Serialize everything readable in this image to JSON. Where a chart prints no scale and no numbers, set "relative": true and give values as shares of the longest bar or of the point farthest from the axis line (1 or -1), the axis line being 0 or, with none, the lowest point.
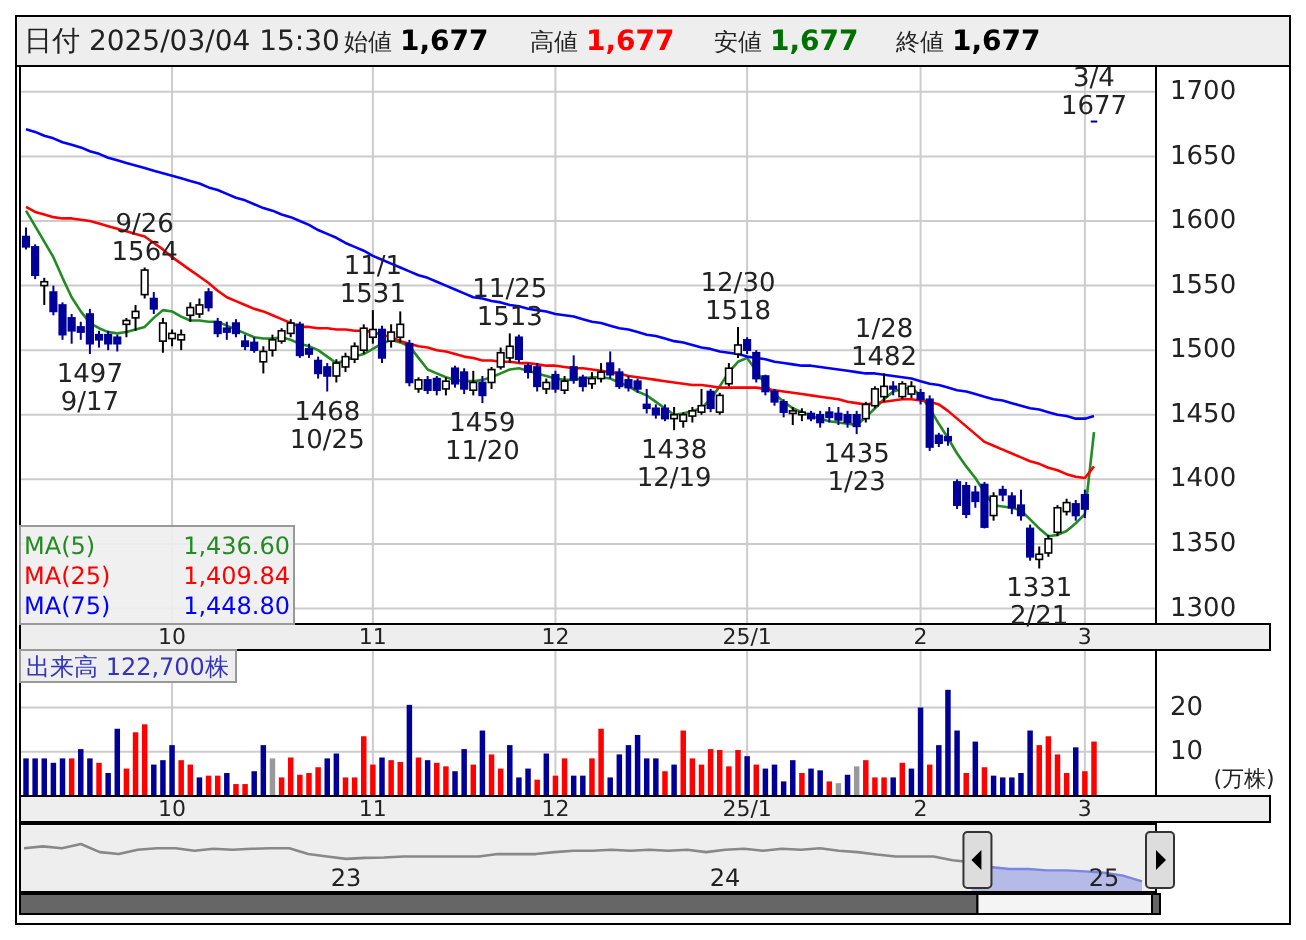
{
  "chart_data": [
    {
      "type": "candlestick",
      "title": "日付 2025/03/04 15:30",
      "annotations": [
        "始値 1,677",
        "高値 1,677",
        "安値 1,677",
        "終値 1,677",
        {
          "text": "9/26 1564",
          "y": 1564
        },
        {
          "text": "1497 9/17",
          "y": 1497
        },
        {
          "text": "1468 10/25",
          "y": 1468
        },
        {
          "text": "11/1 1531",
          "y": 1531
        },
        {
          "text": "1459 11/20",
          "y": 1459
        },
        {
          "text": "11/25 1513",
          "y": 1513
        },
        {
          "text": "1438 12/19",
          "y": 1438
        },
        {
          "text": "12/30 1518",
          "y": 1518
        },
        {
          "text": "1435 1/23",
          "y": 1435
        },
        {
          "text": "1/28 1482",
          "y": 1482
        },
        {
          "text": "1331 2/21",
          "y": 1331
        },
        {
          "text": "3/4 1677",
          "y": 1677
        }
      ],
      "categories": [
        null,
        null,
        null,
        null,
        null,
        null,
        null,
        null,
        null,
        null,
        null,
        null,
        null,
        null,
        null,
        null,
        "10",
        null,
        null,
        null,
        null,
        null,
        null,
        null,
        null,
        null,
        null,
        null,
        null,
        null,
        null,
        null,
        null,
        null,
        null,
        null,
        null,
        null,
        "11",
        null,
        null,
        null,
        null,
        null,
        null,
        null,
        null,
        null,
        null,
        null,
        null,
        null,
        null,
        null,
        null,
        null,
        null,
        null,
        "12",
        null,
        null,
        null,
        null,
        null,
        null,
        null,
        null,
        null,
        null,
        null,
        null,
        null,
        null,
        null,
        null,
        null,
        null,
        null,
        null,
        "25/1",
        null,
        null,
        null,
        null,
        null,
        null,
        null,
        null,
        null,
        null,
        null,
        null,
        null,
        null,
        null,
        null,
        null,
        null,
        "2",
        null,
        null,
        null,
        null,
        null,
        null,
        null,
        null,
        null,
        null,
        null,
        null,
        null,
        null,
        null,
        null,
        null,
        "3",
        null
      ],
      "ohlc": [
        [
          1588,
          1595,
          1578,
          1580
        ],
        [
          1580,
          1582,
          1555,
          1558
        ],
        [
          1550,
          1556,
          1535,
          1553
        ],
        [
          1545,
          1550,
          1527,
          1530
        ],
        [
          1535,
          1537,
          1508,
          1512
        ],
        [
          1525,
          1528,
          1505,
          1515
        ],
        [
          1518,
          1522,
          1508,
          1514
        ],
        [
          1528,
          1532,
          1497,
          1505
        ],
        [
          1512,
          1515,
          1502,
          1508
        ],
        [
          1512,
          1515,
          1500,
          1505
        ],
        [
          1510,
          1512,
          1499,
          1505
        ],
        [
          1520,
          1525,
          1510,
          1523
        ],
        [
          1525,
          1535,
          1515,
          1530
        ],
        [
          1543,
          1564,
          1540,
          1562
        ],
        [
          1540,
          1545,
          1528,
          1532
        ],
        [
          1507,
          1525,
          1498,
          1521
        ],
        [
          1509,
          1516,
          1503,
          1513
        ],
        [
          1508,
          1516,
          1500,
          1512
        ],
        [
          1527,
          1537,
          1522,
          1533
        ],
        [
          1528,
          1540,
          1525,
          1535
        ],
        [
          1545,
          1548,
          1530,
          1533
        ],
        [
          1522,
          1525,
          1510,
          1513
        ],
        [
          1517,
          1522,
          1508,
          1514
        ],
        [
          1521,
          1524,
          1510,
          1513
        ],
        [
          1507,
          1512,
          1500,
          1503
        ],
        [
          1506,
          1510,
          1498,
          1500
        ],
        [
          1491,
          1503,
          1482,
          1499
        ],
        [
          1500,
          1512,
          1495,
          1508
        ],
        [
          1507,
          1517,
          1505,
          1515
        ],
        [
          1513,
          1524,
          1510,
          1521
        ],
        [
          1520,
          1522,
          1494,
          1496
        ],
        [
          1501,
          1505,
          1494,
          1497
        ],
        [
          1492,
          1495,
          1478,
          1482
        ],
        [
          1487,
          1490,
          1468,
          1480
        ],
        [
          1480,
          1493,
          1475,
          1490
        ],
        [
          1487,
          1498,
          1483,
          1495
        ],
        [
          1493,
          1506,
          1490,
          1503
        ],
        [
          1500,
          1520,
          1497,
          1517
        ],
        [
          1510,
          1531,
          1505,
          1516
        ],
        [
          1516,
          1519,
          1490,
          1494
        ],
        [
          1507,
          1520,
          1502,
          1514
        ],
        [
          1510,
          1530,
          1506,
          1520
        ],
        [
          1505,
          1508,
          1472,
          1475
        ],
        [
          1470,
          1479,
          1467,
          1477
        ],
        [
          1477,
          1480,
          1466,
          1469
        ],
        [
          1478,
          1480,
          1465,
          1469
        ],
        [
          1470,
          1479,
          1465,
          1476
        ],
        [
          1486,
          1488,
          1471,
          1474
        ],
        [
          1483,
          1486,
          1466,
          1470
        ],
        [
          1469,
          1484,
          1465,
          1475
        ],
        [
          1475,
          1480,
          1459,
          1465
        ],
        [
          1475,
          1487,
          1470,
          1485
        ],
        [
          1487,
          1502,
          1485,
          1498
        ],
        [
          1494,
          1513,
          1490,
          1503
        ],
        [
          1510,
          1512,
          1490,
          1493
        ],
        [
          1488,
          1490,
          1478,
          1483
        ],
        [
          1487,
          1490,
          1468,
          1472
        ],
        [
          1470,
          1478,
          1466,
          1475
        ],
        [
          1481,
          1484,
          1467,
          1470
        ],
        [
          1469,
          1480,
          1466,
          1476
        ],
        [
          1487,
          1496,
          1474,
          1477
        ],
        [
          1479,
          1481,
          1468,
          1472
        ],
        [
          1474,
          1483,
          1470,
          1478
        ],
        [
          1478,
          1490,
          1475,
          1483
        ],
        [
          1490,
          1499,
          1478,
          1481
        ],
        [
          1483,
          1486,
          1470,
          1472
        ],
        [
          1477,
          1480,
          1468,
          1471
        ],
        [
          1476,
          1478,
          1467,
          1470
        ],
        [
          1458,
          1470,
          1451,
          1455
        ],
        [
          1455,
          1458,
          1447,
          1450
        ],
        [
          1455,
          1458,
          1445,
          1447
        ],
        [
          1447,
          1456,
          1438,
          1450
        ],
        [
          1445,
          1452,
          1440,
          1450
        ],
        [
          1449,
          1456,
          1444,
          1453
        ],
        [
          1452,
          1470,
          1450,
          1457
        ],
        [
          1468,
          1470,
          1452,
          1455
        ],
        [
          1452,
          1467,
          1450,
          1465
        ],
        [
          1474,
          1490,
          1472,
          1486
        ],
        [
          1497,
          1518,
          1494,
          1504
        ],
        [
          1508,
          1510,
          1497,
          1500
        ],
        [
          1498,
          1500,
          1475,
          1478
        ],
        [
          1480,
          1481,
          1465,
          1468
        ],
        [
          1468,
          1470,
          1457,
          1460
        ],
        [
          1460,
          1462,
          1448,
          1452
        ],
        [
          1451,
          1456,
          1442,
          1453
        ],
        [
          1450,
          1455,
          1445,
          1452
        ],
        [
          1451,
          1453,
          1445,
          1447
        ],
        [
          1450,
          1453,
          1440,
          1444
        ],
        [
          1452,
          1456,
          1444,
          1448
        ],
        [
          1451,
          1456,
          1442,
          1446
        ],
        [
          1450,
          1453,
          1440,
          1444
        ],
        [
          1450,
          1453,
          1435,
          1441
        ],
        [
          1447,
          1460,
          1444,
          1458
        ],
        [
          1457,
          1472,
          1455,
          1470
        ],
        [
          1464,
          1482,
          1460,
          1472
        ],
        [
          1472,
          1476,
          1465,
          1470
        ],
        [
          1464,
          1476,
          1462,
          1474
        ],
        [
          1466,
          1476,
          1463,
          1472
        ],
        [
          1467,
          1470,
          1458,
          1462
        ],
        [
          1462,
          1465,
          1422,
          1425
        ],
        [
          1434,
          1436,
          1425,
          1428
        ],
        [
          1433,
          1440,
          1426,
          1430
        ],
        [
          1398,
          1400,
          1377,
          1380
        ],
        [
          1395,
          1398,
          1370,
          1373
        ],
        [
          1390,
          1395,
          1378,
          1383
        ],
        [
          1396,
          1398,
          1362,
          1363
        ],
        [
          1372,
          1390,
          1368,
          1387
        ],
        [
          1392,
          1395,
          1383,
          1388
        ],
        [
          1387,
          1390,
          1373,
          1378
        ],
        [
          1380,
          1392,
          1368,
          1372
        ],
        [
          1362,
          1365,
          1337,
          1340
        ],
        [
          1338,
          1348,
          1331,
          1342
        ],
        [
          1343,
          1357,
          1340,
          1354
        ],
        [
          1359,
          1380,
          1356,
          1378
        ],
        [
          1375,
          1385,
          1372,
          1382
        ],
        [
          1381,
          1384,
          1368,
          1372
        ],
        [
          1388,
          1392,
          1370,
          1377
        ],
        [
          1677,
          1677,
          1677,
          1677
        ]
      ],
      "colors": [
        "#000099",
        "#000099",
        "#ffffff",
        "#000099",
        "#000099",
        "#000099",
        "#000099",
        "#000099",
        "#000099",
        "#000099",
        "#000099",
        "#ffffff",
        "#ffffff",
        "#ffffff",
        "#000099",
        "#ffffff",
        "#ffffff",
        "#ffffff",
        "#ffffff",
        "#ffffff",
        "#000099",
        "#000099",
        "#000099",
        "#000099",
        "#000099",
        "#000099",
        "#ffffff",
        "#ffffff",
        "#ffffff",
        "#ffffff",
        "#000099",
        "#000099",
        "#000099",
        "#000099",
        "#ffffff",
        "#ffffff",
        "#ffffff",
        "#ffffff",
        "#ffffff",
        "#000099",
        "#ffffff",
        "#ffffff",
        "#000099",
        "#ffffff",
        "#000099",
        "#000099",
        "#ffffff",
        "#000099",
        "#000099",
        "#ffffff",
        "#000099",
        "#ffffff",
        "#ffffff",
        "#ffffff",
        "#000099",
        "#000099",
        "#000099",
        "#ffffff",
        "#000099",
        "#ffffff",
        "#000099",
        "#000099",
        "#ffffff",
        "#ffffff",
        "#000099",
        "#000099",
        "#000099",
        "#000099",
        "#000099",
        "#000099",
        "#000099",
        "#ffffff",
        "#ffffff",
        "#ffffff",
        "#ffffff",
        "#000099",
        "#ffffff",
        "#ffffff",
        "#ffffff",
        "#000099",
        "#000099",
        "#000099",
        "#000099",
        "#000099",
        "#ffffff",
        "#ffffff",
        "#000099",
        "#000099",
        "#000099",
        "#000099",
        "#000099",
        "#000099",
        "#ffffff",
        "#ffffff",
        "#ffffff",
        "#000099",
        "#ffffff",
        "#ffffff",
        "#000099",
        "#000099",
        "#000099",
        "#000099",
        "#000099",
        "#000099",
        "#000099",
        "#000099",
        "#ffffff",
        "#000099",
        "#000099",
        "#000099",
        "#000099",
        "#ffffff",
        "#ffffff",
        "#ffffff",
        "#ffffff",
        "#000099",
        "#000099",
        "#000099"
      ],
      "series": [
        {
          "type": "line",
          "name": "MA(5) 1,436.60",
          "color": "#228b22",
          "values": [
            1608,
            1596,
            1584,
            1572,
            1556,
            1541,
            1530,
            1521,
            1517,
            1514,
            1513,
            1514,
            1516,
            1518,
            1525,
            1531,
            1530,
            1526,
            1523,
            1523,
            1522,
            1522,
            1519,
            1516,
            1513,
            1510,
            1509,
            1509,
            1510,
            1508,
            1505,
            1503,
            1500,
            1495,
            1490,
            1492,
            1495,
            1497,
            1501,
            1505,
            1508,
            1506,
            1503,
            1494,
            1485,
            1482,
            1479,
            1477,
            1476,
            1476,
            1477,
            1479,
            1482,
            1485,
            1486,
            1484,
            1482,
            1480,
            1478,
            1477,
            1477,
            1478,
            1479,
            1479,
            1478,
            1475,
            1472,
            1468,
            1465,
            1460,
            1455,
            1450,
            1451,
            1453,
            1455,
            1462,
            1472,
            1483,
            1491,
            1494,
            1484,
            1473,
            1466,
            1460,
            1455,
            1452,
            1449,
            1447,
            1445,
            1444,
            1443,
            1442,
            1448,
            1455,
            1462,
            1468,
            1470,
            1471,
            1465,
            1455,
            1443,
            1432,
            1420,
            1410,
            1401,
            1390,
            1380,
            1379,
            1378,
            1376,
            1369,
            1362,
            1356,
            1357,
            1360,
            1366,
            1373,
            1436.6
          ]
        },
        {
          "type": "line",
          "name": "MA(25) 1,409.84",
          "color": "#ff0000",
          "values": [
            1611,
            1607,
            1605,
            1603,
            1602,
            1602,
            1601,
            1600,
            1598,
            1596,
            1594,
            1592,
            1590,
            1588,
            1583,
            1578,
            1572,
            1567,
            1562,
            1557,
            1552,
            1546,
            1541,
            1538,
            1535,
            1532,
            1530,
            1527,
            1524,
            1521,
            1518,
            1518,
            1517,
            1517,
            1516,
            1516,
            1515,
            1515,
            1514,
            1512,
            1510,
            1507,
            1505,
            1503,
            1502,
            1500,
            1499,
            1497,
            1495,
            1494,
            1492,
            1492,
            1491,
            1491,
            1490,
            1490,
            1489,
            1488,
            1488,
            1487,
            1486,
            1486,
            1485,
            1484,
            1483,
            1482,
            1480,
            1479,
            1478,
            1477,
            1476,
            1475,
            1474,
            1473,
            1473,
            1472,
            1471,
            1471,
            1471,
            1471,
            1471,
            1470,
            1469,
            1468,
            1467,
            1466,
            1465,
            1464,
            1463,
            1462,
            1460,
            1459,
            1458,
            1459,
            1460,
            1461,
            1462,
            1462,
            1461,
            1460,
            1458,
            1453,
            1447,
            1441,
            1435,
            1429,
            1426,
            1423,
            1420,
            1417,
            1414,
            1412,
            1409,
            1407,
            1404,
            1402,
            1401,
            1410
          ]
        },
        {
          "type": "line",
          "name": "MA(75) 1,448.80",
          "color": "#0000ff",
          "values": [
            1671,
            1669,
            1666,
            1664,
            1661,
            1659,
            1657,
            1654,
            1652,
            1649,
            1647,
            1645,
            1643,
            1641,
            1639,
            1637,
            1635,
            1633,
            1631,
            1629,
            1626,
            1624,
            1621,
            1618,
            1616,
            1613,
            1610,
            1608,
            1605,
            1603,
            1600,
            1597,
            1593,
            1590,
            1587,
            1583,
            1580,
            1577,
            1573,
            1570,
            1567,
            1564,
            1561,
            1558,
            1556,
            1553,
            1550,
            1547,
            1544,
            1541,
            1540,
            1538,
            1537,
            1535,
            1534,
            1532,
            1531,
            1530,
            1528,
            1527,
            1526,
            1524,
            1522,
            1521,
            1519,
            1517,
            1516,
            1514,
            1512,
            1511,
            1509,
            1507,
            1506,
            1504,
            1502,
            1501,
            1499,
            1498,
            1497,
            1495,
            1494,
            1493,
            1491,
            1490,
            1489,
            1488,
            1488,
            1487,
            1486,
            1485,
            1484,
            1483,
            1482,
            1482,
            1481,
            1480,
            1479,
            1478,
            1476,
            1474,
            1473,
            1471,
            1469,
            1468,
            1466,
            1464,
            1462,
            1461,
            1459,
            1457,
            1455,
            1454,
            1452,
            1450,
            1449,
            1447,
            1447,
            1449
          ]
        }
      ],
      "ylim": [
        1288,
        1720
      ],
      "yticks": [
        1300,
        1350,
        1400,
        1450,
        1500,
        1550,
        1600,
        1650,
        1700
      ],
      "grid": true
    },
    {
      "type": "bar",
      "title": "出来高 122,700株",
      "ylabel": "(万株)",
      "categories": [
        null,
        null,
        null,
        null,
        null,
        null,
        null,
        null,
        null,
        null,
        null,
        null,
        null,
        null,
        null,
        null,
        "10",
        null,
        null,
        null,
        null,
        null,
        null,
        null,
        null,
        null,
        null,
        null,
        null,
        null,
        null,
        null,
        null,
        null,
        null,
        null,
        null,
        null,
        "11",
        null,
        null,
        null,
        null,
        null,
        null,
        null,
        null,
        null,
        null,
        null,
        null,
        null,
        null,
        null,
        null,
        null,
        null,
        null,
        "12",
        null,
        null,
        null,
        null,
        null,
        null,
        null,
        null,
        null,
        null,
        null,
        null,
        null,
        null,
        null,
        null,
        null,
        null,
        null,
        null,
        "25/1",
        null,
        null,
        null,
        null,
        null,
        null,
        null,
        null,
        null,
        null,
        null,
        null,
        null,
        null,
        null,
        null,
        null,
        null,
        "2",
        null,
        null,
        null,
        null,
        null,
        null,
        null,
        null,
        null,
        null,
        null,
        null,
        null,
        null,
        null,
        null,
        null,
        "3",
        null
      ],
      "values": [
        8.5,
        8.5,
        8.5,
        7.5,
        8.5,
        8.5,
        10.6,
        8.5,
        7.5,
        5.2,
        15.2,
        6.2,
        14.4,
        16.2,
        7.1,
        8.1,
        11.5,
        8.1,
        7.1,
        4.2,
        4.6,
        4.6,
        5.2,
        2.7,
        2.7,
        5.6,
        11.5,
        8.5,
        4.2,
        8.7,
        4.8,
        5.2,
        6.5,
        8.5,
        9.6,
        4.2,
        4.2,
        13.5,
        7.1,
        8.7,
        8.1,
        7.7,
        20.6,
        8.7,
        8.1,
        7.5,
        6.7,
        5.6,
        10.6,
        7.1,
        14.8,
        9.4,
        6.2,
        11.5,
        4.2,
        6.2,
        3.7,
        9.6,
        4.6,
        8.5,
        4.6,
        4.6,
        8.5,
        15.2,
        4.2,
        9.4,
        11.5,
        13.8,
        8.5,
        8.5,
        5.6,
        7.1,
        14.8,
        8.5,
        7.1,
        10.6,
        10.4,
        6.7,
        10.4,
        9,
        7.1,
        6.2,
        7.1,
        3.3,
        8.1,
        5.2,
        6.2,
        5.8,
        3.3,
        2.9,
        4.8,
        6.7,
        8.1,
        4.2,
        4.2,
        4.2,
        7.5,
        6.2,
        20,
        7.1,
        11.5,
        24,
        14.8,
        5.2,
        12.3,
        6.5,
        4.6,
        4.2,
        4.2,
        5.2,
        14.8,
        11.5,
        13.5,
        9.4,
        5.2,
        11,
        5.6,
        12.3
      ],
      "colors": [
        "#000099",
        "#000099",
        "#000099",
        "#000099",
        "#000099",
        "#ff0000",
        "#000099",
        "#000099",
        "#ff0000",
        "#000099",
        "#000099",
        "#ff0000",
        "#ff0000",
        "#ff0000",
        "#000099",
        "#000099",
        "#000099",
        "#ff0000",
        "#ff0000",
        "#000099",
        "#ff0000",
        "#ff0000",
        "#000099",
        "#ff0000",
        "#ff0000",
        "#000099",
        "#000099",
        "#999999",
        "#ff0000",
        "#ff0000",
        "#ff0000",
        "#ff0000",
        "#ff0000",
        "#000099",
        "#000099",
        "#ff0000",
        "#ff0000",
        "#ff0000",
        "#ff0000",
        "#000099",
        "#ff0000",
        "#ff0000",
        "#000099",
        "#ff0000",
        "#000099",
        "#ff0000",
        "#ff0000",
        "#000099",
        "#000099",
        "#ff0000",
        "#000099",
        "#ff0000",
        "#ff0000",
        "#000099",
        "#000099",
        "#000099",
        "#ff0000",
        "#000099",
        "#ff0000",
        "#ff0000",
        "#000099",
        "#000099",
        "#ff0000",
        "#ff0000",
        "#000099",
        "#000099",
        "#000099",
        "#000099",
        "#000099",
        "#000099",
        "#ff0000",
        "#000099",
        "#ff0000",
        "#ff0000",
        "#ff0000",
        "#ff0000",
        "#ff0000",
        "#ff0000",
        "#ff0000",
        "#000099",
        "#ff0000",
        "#000099",
        "#000099",
        "#000099",
        "#000099",
        "#ff0000",
        "#000099",
        "#000099",
        "#ff0000",
        "#999999",
        "#000099",
        "#999999",
        "#ff0000",
        "#ff0000",
        "#ff0000",
        "#000099",
        "#ff0000",
        "#000099",
        "#000099",
        "#ff0000",
        "#000099",
        "#000099",
        "#000099",
        "#ff0000",
        "#000099",
        "#ff0000",
        "#000099",
        "#000099",
        "#000099",
        "#000099",
        "#000099",
        "#ff0000",
        "#ff0000",
        "#ff0000",
        "#ff0000",
        "#000099",
        "#ff0000",
        "#ff0000"
      ],
      "ylim": [
        0,
        33
      ],
      "yticks": [
        10,
        20
      ],
      "grid": true
    },
    {
      "type": "line",
      "relative": true,
      "categories": [
        null,
        null,
        null,
        null,
        null,
        null,
        null,
        null,
        null,
        null,
        null,
        null,
        null,
        null,
        null,
        null,
        null,
        "23",
        null,
        null,
        null,
        null,
        null,
        null,
        null,
        null,
        null,
        null,
        null,
        null,
        null,
        null,
        null,
        null,
        null,
        null,
        null,
        "24",
        null,
        null,
        null,
        null,
        null,
        null,
        null,
        null,
        null,
        null,
        null,
        null,
        null,
        null,
        null,
        null,
        null,
        null,
        null,
        "25",
        null,
        null
      ],
      "series": [
        {
          "type": "line",
          "color": "#888888",
          "values": [
            0.91,
            0.95,
            0.91,
            1,
            0.83,
            0.79,
            0.88,
            0.91,
            0.91,
            0.86,
            0.9,
            0.88,
            0.9,
            0.91,
            0.91,
            0.79,
            0.74,
            0.69,
            0.71,
            0.72,
            0.74,
            0.74,
            0.74,
            0.74,
            0.74,
            0.79,
            0.79,
            0.79,
            0.83,
            0.86,
            0.86,
            0.88,
            0.86,
            0.88,
            0.86,
            0.88,
            0.83,
            0.88,
            0.9,
            0.86,
            0.9,
            0.88,
            0.91,
            0.86,
            0.83,
            0.78,
            0.74,
            0.74,
            0.74,
            0.66,
            0.62,
            null,
            null,
            null,
            null,
            null,
            null,
            null,
            null,
            null
          ]
        },
        {
          "type": "area",
          "color": "#7c86e0",
          "values": [
            null,
            null,
            null,
            null,
            null,
            null,
            null,
            null,
            null,
            null,
            null,
            null,
            null,
            null,
            null,
            null,
            null,
            null,
            null,
            null,
            null,
            null,
            null,
            null,
            null,
            null,
            null,
            null,
            null,
            null,
            null,
            null,
            null,
            null,
            null,
            null,
            null,
            null,
            null,
            null,
            null,
            null,
            null,
            null,
            null,
            null,
            null,
            null,
            null,
            null,
            0.62,
            0.52,
            0.48,
            0.48,
            0.45,
            0.45,
            0.43,
            0.4,
            0.34,
            0.22
          ]
        }
      ],
      "grid": false
    }
  ]
}
